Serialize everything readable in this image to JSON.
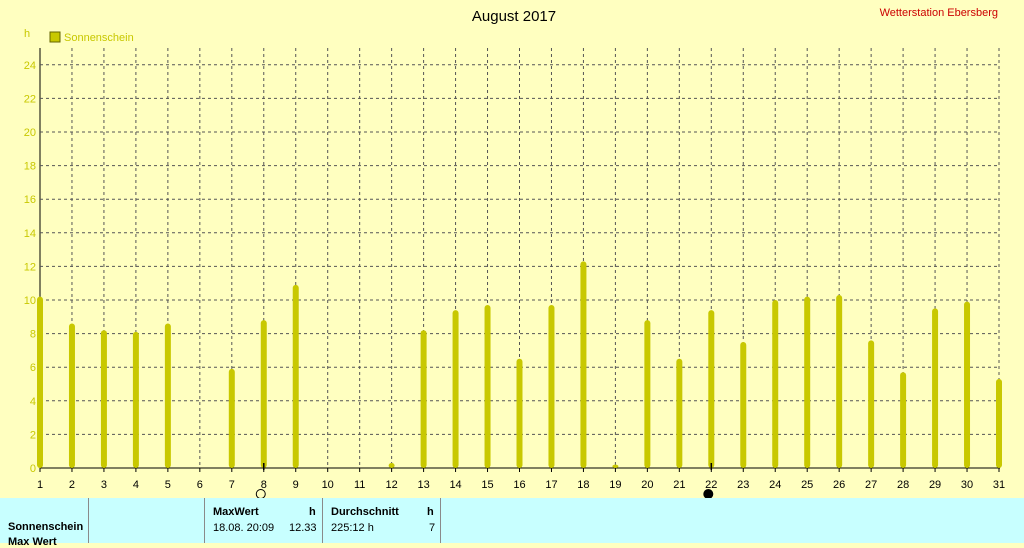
{
  "header": {
    "title": "August 2017",
    "station": "Wetterstation Ebersberg",
    "yunit": "h"
  },
  "legend": {
    "label": "Sonnenschein",
    "color": "#c8c800"
  },
  "colors": {
    "bar": "#c8c800",
    "grid": "#555555",
    "background": "#ffffc0",
    "panel": "#c8ffff"
  },
  "chart_data": {
    "type": "bar",
    "title": "August 2017",
    "xlabel": "",
    "ylabel": "h",
    "categories": [
      "1",
      "2",
      "3",
      "4",
      "5",
      "6",
      "7",
      "8",
      "9",
      "10",
      "11",
      "12",
      "13",
      "14",
      "15",
      "16",
      "17",
      "18",
      "19",
      "20",
      "21",
      "22",
      "23",
      "24",
      "25",
      "26",
      "27",
      "28",
      "29",
      "30",
      "31"
    ],
    "series": [
      {
        "name": "Sonnenschein",
        "values": [
          10.2,
          8.6,
          8.2,
          8.1,
          8.6,
          0,
          5.9,
          8.8,
          10.9,
          0,
          0,
          0.3,
          8.2,
          9.4,
          9.7,
          6.5,
          9.7,
          12.3,
          0.2,
          8.8,
          6.5,
          9.4,
          7.5,
          10.0,
          10.2,
          10.3,
          7.6,
          5.7,
          9.5,
          9.9,
          5.3
        ]
      }
    ],
    "ylim": [
      0,
      25
    ],
    "yticks": [
      0,
      2,
      4,
      6,
      8,
      10,
      12,
      14,
      16,
      18,
      20,
      22,
      24
    ],
    "grid": true,
    "legend_position": "top-left",
    "moon_markers": [
      {
        "day": "8",
        "phase": "full"
      },
      {
        "day": "22",
        "phase": "new"
      }
    ]
  },
  "table": {
    "row_label": "Sonnenschein",
    "row_label_2": "Max Wert",
    "max_header": "MaxWert",
    "max_unit": "h",
    "max_time": "18.08.  20:09",
    "max_value": "12.33",
    "avg_header": "Durchschnitt",
    "avg_unit": "h",
    "avg_total": "225:12 h",
    "avg_value": "7"
  }
}
